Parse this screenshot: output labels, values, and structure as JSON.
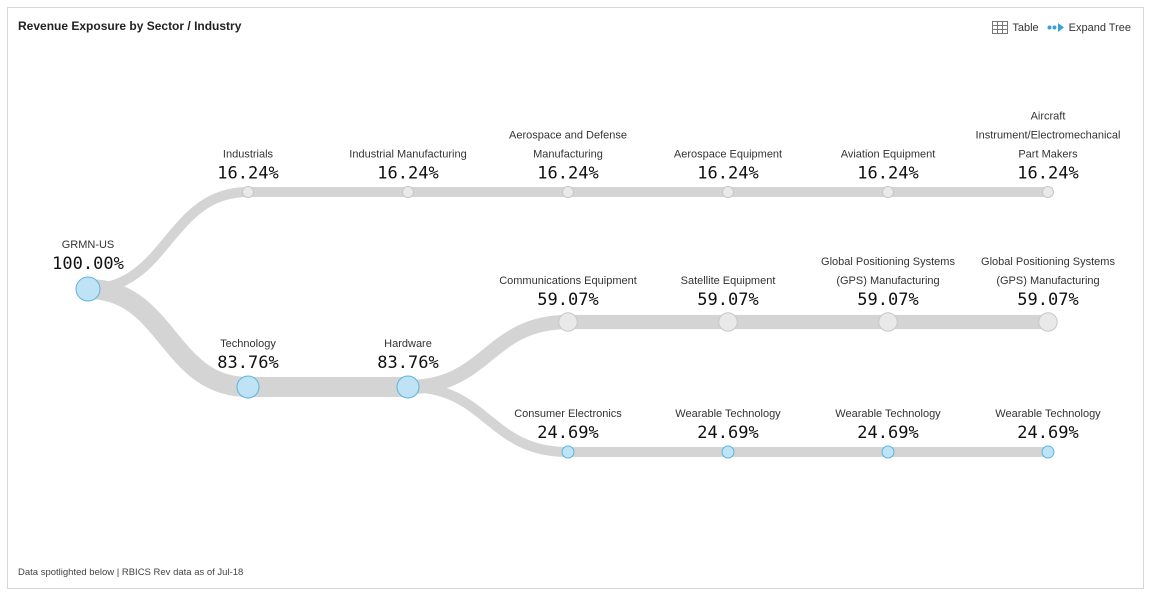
{
  "header": {
    "title": "Revenue Exposure by Sector / Industry"
  },
  "toolbar": {
    "table_label": "Table",
    "expand_label": "Expand Tree",
    "table_icon": "grid-icon",
    "expand_icon": "expand-tree-icon"
  },
  "footer": {
    "note": "Data spotlighted below | RBICS Rev data as of Jul-18"
  },
  "colors": {
    "link": "#d4d4d4",
    "node_fill": "#bfe3f5",
    "node_stroke": "#5ab4e0",
    "leaf_fill": "#e9e9e9",
    "leaf_stroke": "#c8c8c8"
  },
  "tree": {
    "nodes": [
      {
        "id": "root",
        "label": [
          "GRMN-US"
        ],
        "pct": "100.00%",
        "value": 100.0,
        "col": 0,
        "row": "root",
        "highlight": true
      },
      {
        "id": "ind1",
        "label": [
          "Industrials"
        ],
        "pct": "16.24%",
        "value": 16.24,
        "col": 1,
        "row": "r1",
        "highlight": false
      },
      {
        "id": "ind2",
        "label": [
          "Industrial Manufacturing"
        ],
        "pct": "16.24%",
        "value": 16.24,
        "col": 2,
        "row": "r1",
        "highlight": false
      },
      {
        "id": "ind3",
        "label": [
          "Aerospace and Defense",
          "Manufacturing"
        ],
        "pct": "16.24%",
        "value": 16.24,
        "col": 3,
        "row": "r1",
        "highlight": false
      },
      {
        "id": "ind4",
        "label": [
          "Aerospace Equipment"
        ],
        "pct": "16.24%",
        "value": 16.24,
        "col": 4,
        "row": "r1",
        "highlight": false
      },
      {
        "id": "ind5",
        "label": [
          "Aviation Equipment"
        ],
        "pct": "16.24%",
        "value": 16.24,
        "col": 5,
        "row": "r1",
        "highlight": false
      },
      {
        "id": "ind6",
        "label": [
          "Aircraft",
          "Instrument/Electromechanical",
          "Part Makers"
        ],
        "pct": "16.24%",
        "value": 16.24,
        "col": 6,
        "row": "r1",
        "highlight": false
      },
      {
        "id": "tech1",
        "label": [
          "Technology"
        ],
        "pct": "83.76%",
        "value": 83.76,
        "col": 1,
        "row": "r3",
        "highlight": true
      },
      {
        "id": "tech2",
        "label": [
          "Hardware"
        ],
        "pct": "83.76%",
        "value": 83.76,
        "col": 2,
        "row": "r3",
        "highlight": true
      },
      {
        "id": "com1",
        "label": [
          "Communications Equipment"
        ],
        "pct": "59.07%",
        "value": 59.07,
        "col": 3,
        "row": "r2",
        "highlight": false
      },
      {
        "id": "com2",
        "label": [
          "Satellite Equipment"
        ],
        "pct": "59.07%",
        "value": 59.07,
        "col": 4,
        "row": "r2",
        "highlight": false
      },
      {
        "id": "com3",
        "label": [
          "Global Positioning Systems",
          "(GPS) Manufacturing"
        ],
        "pct": "59.07%",
        "value": 59.07,
        "col": 5,
        "row": "r2",
        "highlight": false
      },
      {
        "id": "com4",
        "label": [
          "Global Positioning Systems",
          "(GPS) Manufacturing"
        ],
        "pct": "59.07%",
        "value": 59.07,
        "col": 6,
        "row": "r2",
        "highlight": false
      },
      {
        "id": "con1",
        "label": [
          "Consumer Electronics"
        ],
        "pct": "24.69%",
        "value": 24.69,
        "col": 3,
        "row": "r4",
        "highlight": true
      },
      {
        "id": "con2",
        "label": [
          "Wearable Technology"
        ],
        "pct": "24.69%",
        "value": 24.69,
        "col": 4,
        "row": "r4",
        "highlight": true
      },
      {
        "id": "con3",
        "label": [
          "Wearable Technology"
        ],
        "pct": "24.69%",
        "value": 24.69,
        "col": 5,
        "row": "r4",
        "highlight": true
      },
      {
        "id": "con4",
        "label": [
          "Wearable Technology"
        ],
        "pct": "24.69%",
        "value": 24.69,
        "col": 6,
        "row": "r4",
        "highlight": true
      }
    ],
    "links": [
      [
        "root",
        "ind1"
      ],
      [
        "ind1",
        "ind2"
      ],
      [
        "ind2",
        "ind3"
      ],
      [
        "ind3",
        "ind4"
      ],
      [
        "ind4",
        "ind5"
      ],
      [
        "ind5",
        "ind6"
      ],
      [
        "root",
        "tech1"
      ],
      [
        "tech1",
        "tech2"
      ],
      [
        "tech2",
        "com1"
      ],
      [
        "com1",
        "com2"
      ],
      [
        "com2",
        "com3"
      ],
      [
        "com3",
        "com4"
      ],
      [
        "tech2",
        "con1"
      ],
      [
        "con1",
        "con2"
      ],
      [
        "con2",
        "con3"
      ],
      [
        "con3",
        "con4"
      ]
    ]
  }
}
